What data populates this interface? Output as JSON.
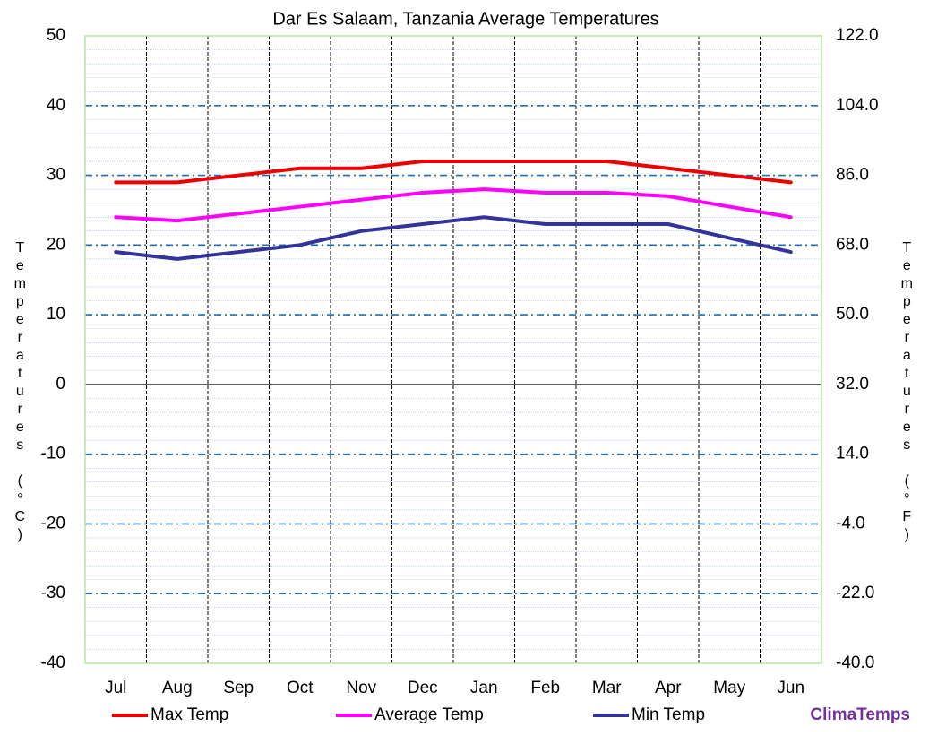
{
  "chart_data": {
    "type": "line",
    "title": "Dar Es Salaam, Tanzania Average Temperatures",
    "y_label": "Temperatures (°C)",
    "y2_label": "Temperatures (°F)",
    "categories": [
      "Jul",
      "Aug",
      "Sep",
      "Oct",
      "Nov",
      "Dec",
      "Jan",
      "Feb",
      "Mar",
      "Apr",
      "May",
      "Jun"
    ],
    "series": [
      {
        "name": "Max Temp",
        "color": "#ee0000",
        "values": [
          29,
          29,
          30,
          31,
          31,
          32,
          32,
          32,
          32,
          31,
          30,
          29
        ]
      },
      {
        "name": "Average Temp",
        "color": "#ff00ff",
        "values": [
          24,
          23.5,
          24.5,
          25.5,
          26.5,
          27.5,
          28,
          27.5,
          27.5,
          27,
          25.5,
          24
        ]
      },
      {
        "name": "Min Temp",
        "color": "#333399",
        "values": [
          19,
          18,
          19,
          20,
          22,
          23,
          24,
          23,
          23,
          23,
          21,
          19
        ]
      }
    ],
    "ylim": [
      -40,
      50
    ],
    "yticks": [
      -40,
      -30,
      -20,
      -10,
      0,
      10,
      20,
      30,
      40,
      50
    ],
    "y2lim": [
      -40,
      122
    ],
    "y2ticks": [
      {
        "value": -40,
        "label": "-40.0"
      },
      {
        "value": -22,
        "label": "-22.0"
      },
      {
        "value": -4,
        "label": "-4.0"
      },
      {
        "value": 14,
        "label": "14.0"
      },
      {
        "value": 32,
        "label": "32.0"
      },
      {
        "value": 50,
        "label": "50.0"
      },
      {
        "value": 68,
        "label": "68.0"
      },
      {
        "value": 86,
        "label": "86.0"
      },
      {
        "value": 104,
        "label": "104.0"
      },
      {
        "value": 122,
        "label": "122.0"
      }
    ],
    "grid": true,
    "brand": "ClimaTemps"
  }
}
